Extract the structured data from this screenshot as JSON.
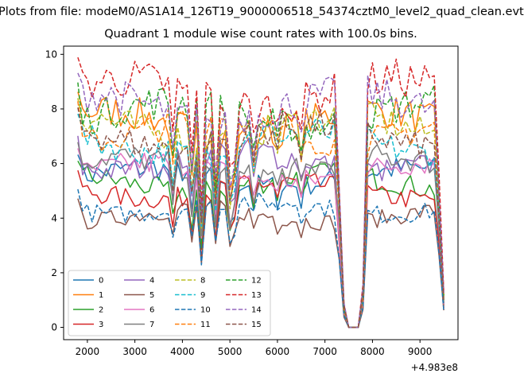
{
  "figure": {
    "suptitle": "Plots from file: modeM0/AS1A14_126T19_9000006518_54374cztM0_level2_quad_clean.evt"
  },
  "chart_data": {
    "type": "line",
    "title": "Quadrant 1 module wise count rates with 100.0s bins.",
    "xlabel": "",
    "ylabel": "",
    "x_offset_label": "+4.983e8",
    "xlim": [
      1500,
      9800
    ],
    "ylim": [
      -0.45,
      10.3
    ],
    "xticks": [
      2000,
      3000,
      4000,
      5000,
      6000,
      7000,
      8000,
      9000
    ],
    "yticks": [
      0,
      2,
      4,
      6,
      8,
      10
    ],
    "grid": false,
    "legend": {
      "position": "lower-left",
      "columns": 4
    },
    "x_start": 1800,
    "x_step": 100,
    "x_end": 9500,
    "series": [
      {
        "name": "0",
        "color": "#1f77b4",
        "style": "solid",
        "level": 5.5
      },
      {
        "name": "1",
        "color": "#ff7f0e",
        "style": "solid",
        "level": 7.5
      },
      {
        "name": "2",
        "color": "#2ca02c",
        "style": "solid",
        "level": 5.3
      },
      {
        "name": "3",
        "color": "#d62728",
        "style": "solid",
        "level": 5.0
      },
      {
        "name": "4",
        "color": "#9467bd",
        "style": "solid",
        "level": 6.1
      },
      {
        "name": "5",
        "color": "#8c564b",
        "style": "solid",
        "level": 4.1
      },
      {
        "name": "6",
        "color": "#e377c2",
        "style": "solid",
        "level": 5.7
      },
      {
        "name": "7",
        "color": "#7f7f7f",
        "style": "solid",
        "level": 5.9
      },
      {
        "name": "8",
        "color": "#bcbd22",
        "style": "dashed",
        "level": 7.3
      },
      {
        "name": "9",
        "color": "#17becf",
        "style": "dashed",
        "level": 6.8
      },
      {
        "name": "10",
        "color": "#1f77b4",
        "style": "dashed",
        "level": 4.4
      },
      {
        "name": "11",
        "color": "#ff7f0e",
        "style": "dashed",
        "level": 7.2
      },
      {
        "name": "12",
        "color": "#2ca02c",
        "style": "dashed",
        "level": 7.8
      },
      {
        "name": "13",
        "color": "#d62728",
        "style": "dashed",
        "level": 8.6
      },
      {
        "name": "14",
        "color": "#9467bd",
        "style": "dashed",
        "level": 8.1
      },
      {
        "name": "15",
        "color": "#8c564b",
        "style": "dashed",
        "level": 7.0
      }
    ]
  }
}
